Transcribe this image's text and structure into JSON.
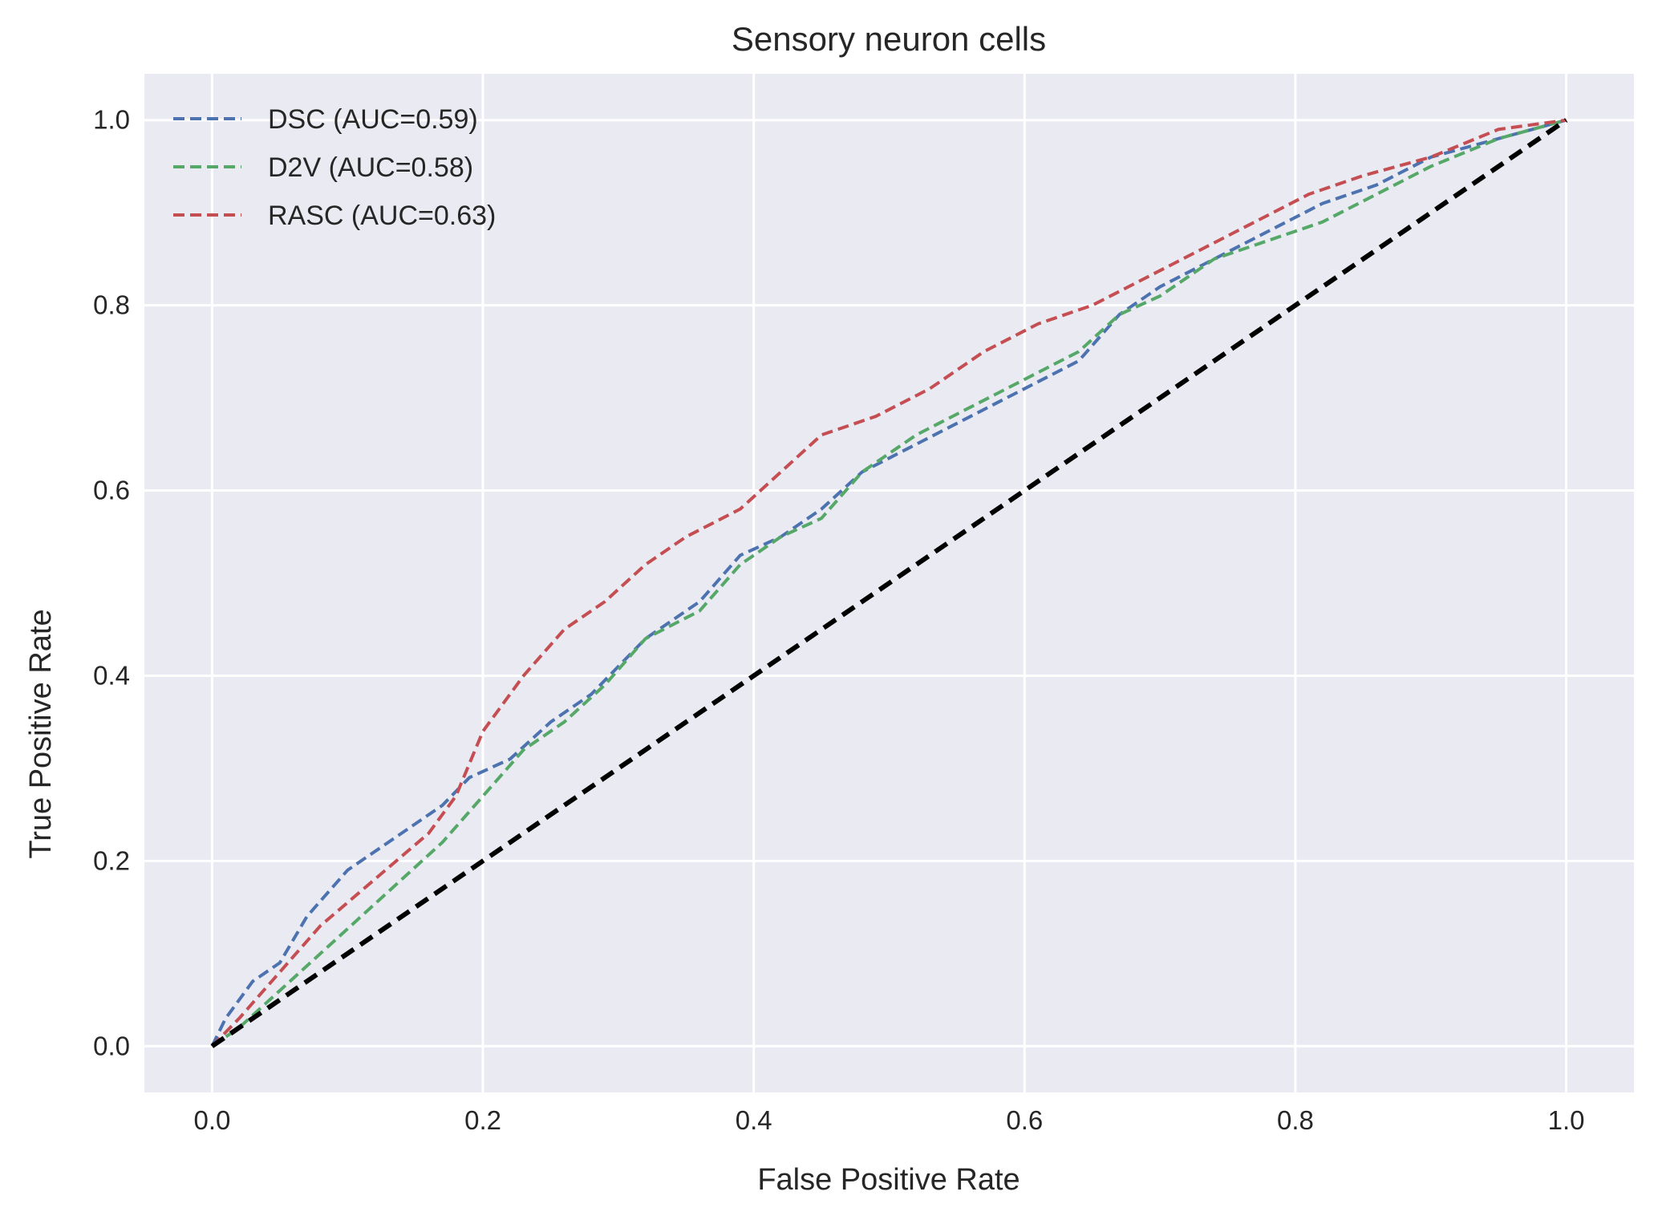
{
  "chart_data": {
    "type": "line",
    "title": "Sensory neuron cells",
    "xlabel": "False Positive Rate",
    "ylabel": "True Positive Rate",
    "xlim": [
      -0.05,
      1.05
    ],
    "ylim": [
      -0.05,
      1.05
    ],
    "x_ticks": [
      "0.0",
      "0.2",
      "0.4",
      "0.6",
      "0.8",
      "1.0"
    ],
    "y_ticks": [
      "0.0",
      "0.2",
      "0.4",
      "0.6",
      "0.8",
      "1.0"
    ],
    "grid": true,
    "legend_position": "top-left",
    "series": [
      {
        "name": "DSC (AUC=0.59)",
        "color": "#4c72b0",
        "style": "dashed",
        "points": [
          [
            0,
            0
          ],
          [
            0.01,
            0.03
          ],
          [
            0.03,
            0.07
          ],
          [
            0.05,
            0.09
          ],
          [
            0.07,
            0.14
          ],
          [
            0.1,
            0.19
          ],
          [
            0.14,
            0.23
          ],
          [
            0.17,
            0.26
          ],
          [
            0.19,
            0.29
          ],
          [
            0.22,
            0.31
          ],
          [
            0.25,
            0.35
          ],
          [
            0.28,
            0.38
          ],
          [
            0.32,
            0.44
          ],
          [
            0.36,
            0.48
          ],
          [
            0.39,
            0.53
          ],
          [
            0.42,
            0.55
          ],
          [
            0.45,
            0.58
          ],
          [
            0.48,
            0.62
          ],
          [
            0.52,
            0.65
          ],
          [
            0.56,
            0.68
          ],
          [
            0.6,
            0.71
          ],
          [
            0.64,
            0.74
          ],
          [
            0.67,
            0.79
          ],
          [
            0.7,
            0.82
          ],
          [
            0.74,
            0.85
          ],
          [
            0.78,
            0.88
          ],
          [
            0.82,
            0.91
          ],
          [
            0.86,
            0.93
          ],
          [
            0.9,
            0.96
          ],
          [
            0.95,
            0.98
          ],
          [
            1,
            1
          ]
        ]
      },
      {
        "name": "D2V (AUC=0.58)",
        "color": "#55a868",
        "style": "dashed",
        "points": [
          [
            0,
            0
          ],
          [
            0.02,
            0.02
          ],
          [
            0.05,
            0.06
          ],
          [
            0.08,
            0.1
          ],
          [
            0.11,
            0.14
          ],
          [
            0.14,
            0.18
          ],
          [
            0.17,
            0.22
          ],
          [
            0.2,
            0.27
          ],
          [
            0.23,
            0.32
          ],
          [
            0.26,
            0.35
          ],
          [
            0.29,
            0.39
          ],
          [
            0.32,
            0.44
          ],
          [
            0.36,
            0.47
          ],
          [
            0.39,
            0.52
          ],
          [
            0.42,
            0.55
          ],
          [
            0.45,
            0.57
          ],
          [
            0.48,
            0.62
          ],
          [
            0.52,
            0.66
          ],
          [
            0.56,
            0.69
          ],
          [
            0.6,
            0.72
          ],
          [
            0.64,
            0.75
          ],
          [
            0.67,
            0.79
          ],
          [
            0.7,
            0.81
          ],
          [
            0.74,
            0.85
          ],
          [
            0.78,
            0.87
          ],
          [
            0.82,
            0.89
          ],
          [
            0.86,
            0.92
          ],
          [
            0.9,
            0.95
          ],
          [
            0.95,
            0.98
          ],
          [
            1,
            1
          ]
        ]
      },
      {
        "name": "RASC (AUC=0.63)",
        "color": "#c44e52",
        "style": "dashed",
        "points": [
          [
            0,
            0
          ],
          [
            0.02,
            0.03
          ],
          [
            0.05,
            0.08
          ],
          [
            0.08,
            0.13
          ],
          [
            0.12,
            0.18
          ],
          [
            0.16,
            0.23
          ],
          [
            0.18,
            0.27
          ],
          [
            0.2,
            0.34
          ],
          [
            0.23,
            0.4
          ],
          [
            0.26,
            0.45
          ],
          [
            0.29,
            0.48
          ],
          [
            0.32,
            0.52
          ],
          [
            0.35,
            0.55
          ],
          [
            0.39,
            0.58
          ],
          [
            0.42,
            0.62
          ],
          [
            0.45,
            0.66
          ],
          [
            0.49,
            0.68
          ],
          [
            0.53,
            0.71
          ],
          [
            0.57,
            0.75
          ],
          [
            0.61,
            0.78
          ],
          [
            0.65,
            0.8
          ],
          [
            0.69,
            0.83
          ],
          [
            0.73,
            0.86
          ],
          [
            0.77,
            0.89
          ],
          [
            0.81,
            0.92
          ],
          [
            0.85,
            0.94
          ],
          [
            0.9,
            0.96
          ],
          [
            0.95,
            0.99
          ],
          [
            1,
            1
          ]
        ]
      },
      {
        "name": "",
        "color": "#000000",
        "style": "dashed",
        "points": [
          [
            0,
            0
          ],
          [
            1,
            1
          ]
        ]
      }
    ]
  }
}
